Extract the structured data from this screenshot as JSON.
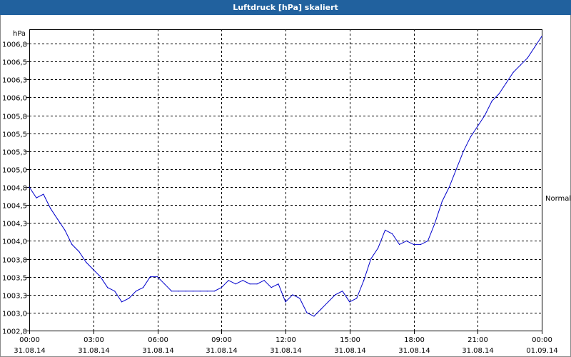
{
  "window": {
    "title": "Luftdruck [hPa] skaliert"
  },
  "chart_data": {
    "type": "line",
    "title": "Luftdruck [hPa] skaliert",
    "ylabel": "hPa",
    "xlabel": "",
    "ylim": [
      1002.75,
      1006.95
    ],
    "yticks": [
      {
        "value": 1002.75,
        "label": "1002,8"
      },
      {
        "value": 1003.0,
        "label": "1003,0"
      },
      {
        "value": 1003.25,
        "label": "1003,3"
      },
      {
        "value": 1003.5,
        "label": "1003,5"
      },
      {
        "value": 1003.75,
        "label": "1003,8"
      },
      {
        "value": 1004.0,
        "label": "1004,0"
      },
      {
        "value": 1004.25,
        "label": "1004,3"
      },
      {
        "value": 1004.5,
        "label": "1004,5"
      },
      {
        "value": 1004.75,
        "label": "1004,8"
      },
      {
        "value": 1005.0,
        "label": "1005,0"
      },
      {
        "value": 1005.25,
        "label": "1005,3"
      },
      {
        "value": 1005.5,
        "label": "1005,5"
      },
      {
        "value": 1005.75,
        "label": "1005,8"
      },
      {
        "value": 1006.0,
        "label": "1006,0"
      },
      {
        "value": 1006.25,
        "label": "1006,3"
      },
      {
        "value": 1006.5,
        "label": "1006,5"
      },
      {
        "value": 1006.75,
        "label": "1006,8"
      }
    ],
    "xlim": [
      "31.08.14 00:00",
      "01.09.14 00:00"
    ],
    "xticks": [
      {
        "time": "00:00",
        "date": "31.08.14"
      },
      {
        "time": "03:00",
        "date": "31.08.14"
      },
      {
        "time": "06:00",
        "date": "31.08.14"
      },
      {
        "time": "09:00",
        "date": "31.08.14"
      },
      {
        "time": "12:00",
        "date": "31.08.14"
      },
      {
        "time": "15:00",
        "date": "31.08.14"
      },
      {
        "time": "18:00",
        "date": "31.08.14"
      },
      {
        "time": "21:00",
        "date": "31.08.14"
      },
      {
        "time": "00:00",
        "date": "01.09.14"
      }
    ],
    "reference_line": {
      "label": "Normal",
      "value": 1004.6
    },
    "grid": true,
    "line_color": "#0000cc",
    "series": [
      {
        "x": [
          "31.08.14 00:00",
          "31.08.14 00:20",
          "31.08.14 00:40",
          "31.08.14 01:00",
          "31.08.14 01:20",
          "31.08.14 01:40",
          "31.08.14 02:00",
          "31.08.14 02:20",
          "31.08.14 02:40",
          "31.08.14 03:00",
          "31.08.14 03:20",
          "31.08.14 03:40",
          "31.08.14 04:00",
          "31.08.14 04:20",
          "31.08.14 04:40",
          "31.08.14 05:00",
          "31.08.14 05:20",
          "31.08.14 05:40",
          "31.08.14 06:00",
          "31.08.14 06:20",
          "31.08.14 06:40",
          "31.08.14 07:00",
          "31.08.14 07:20",
          "31.08.14 07:40",
          "31.08.14 08:00",
          "31.08.14 08:20",
          "31.08.14 08:40",
          "31.08.14 09:00",
          "31.08.14 09:20",
          "31.08.14 09:40",
          "31.08.14 10:00",
          "31.08.14 10:20",
          "31.08.14 10:40",
          "31.08.14 11:00",
          "31.08.14 11:20",
          "31.08.14 11:40",
          "31.08.14 12:00",
          "31.08.14 12:20",
          "31.08.14 12:40",
          "31.08.14 13:00",
          "31.08.14 13:20",
          "31.08.14 13:40",
          "31.08.14 14:00",
          "31.08.14 14:20",
          "31.08.14 14:40",
          "31.08.14 15:00",
          "31.08.14 15:20",
          "31.08.14 15:40",
          "31.08.14 16:00",
          "31.08.14 16:20",
          "31.08.14 16:40",
          "31.08.14 17:00",
          "31.08.14 17:20",
          "31.08.14 17:40",
          "31.08.14 18:00",
          "31.08.14 18:20",
          "31.08.14 18:40",
          "31.08.14 19:00",
          "31.08.14 19:20",
          "31.08.14 19:40",
          "31.08.14 20:00",
          "31.08.14 20:20",
          "31.08.14 20:40",
          "31.08.14 21:00",
          "31.08.14 21:20",
          "31.08.14 21:40",
          "31.08.14 22:00",
          "31.08.14 22:20",
          "31.08.14 22:40",
          "31.08.14 23:00",
          "31.08.14 23:20",
          "31.08.14 23:40",
          "01.09.14 00:00"
        ],
        "values": [
          1004.75,
          1004.6,
          1004.65,
          1004.45,
          1004.3,
          1004.15,
          1003.95,
          1003.85,
          1003.7,
          1003.6,
          1003.5,
          1003.35,
          1003.3,
          1003.15,
          1003.2,
          1003.3,
          1003.35,
          1003.5,
          1003.5,
          1003.4,
          1003.3,
          1003.3,
          1003.3,
          1003.3,
          1003.3,
          1003.3,
          1003.3,
          1003.35,
          1003.45,
          1003.4,
          1003.45,
          1003.4,
          1003.4,
          1003.45,
          1003.35,
          1003.4,
          1003.15,
          1003.25,
          1003.2,
          1003.0,
          1002.95,
          1003.05,
          1003.15,
          1003.25,
          1003.3,
          1003.15,
          1003.2,
          1003.45,
          1003.75,
          1003.9,
          1004.15,
          1004.1,
          1003.95,
          1004.0,
          1003.95,
          1003.95,
          1004.0,
          1004.25,
          1004.55,
          1004.75,
          1005.0,
          1005.25,
          1005.45,
          1005.6,
          1005.75,
          1005.95,
          1006.05,
          1006.2,
          1006.35,
          1006.45,
          1006.55,
          1006.7,
          1006.85
        ]
      }
    ]
  }
}
